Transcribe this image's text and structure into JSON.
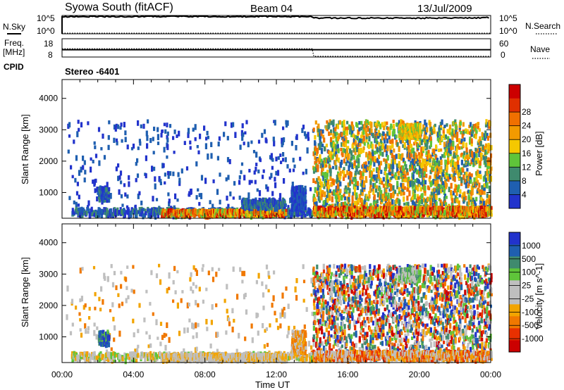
{
  "header": {
    "station": "Syowa South (fitACF)",
    "beam": "Beam 04",
    "date": "13/Jul/2009"
  },
  "noise_panel": {
    "left_label": "N.Sky",
    "right_label": "N.Search",
    "y_ticks": [
      "10^5",
      "10^0"
    ]
  },
  "freq_panel": {
    "left_label_line1": "Freq.",
    "left_label_line2": "[MHz]",
    "left_ticks": [
      "18",
      "8"
    ],
    "right_label": "Nave",
    "right_ticks": [
      "60",
      "0"
    ],
    "cpid_label": "CPID",
    "cpid_value": "Stereo -6401"
  },
  "colors": {
    "power_scale": [
      "#2233cc",
      "#1f5fb0",
      "#3f8a6e",
      "#5fc43a",
      "#f5c800",
      "#f29a00",
      "#f07000",
      "#e03000",
      "#cc0000"
    ],
    "velocity_scale": [
      "#cc0000",
      "#e83000",
      "#f07800",
      "#f2a400",
      "#bfbfbf",
      "#bfbfbf",
      "#5fc43a",
      "#3f8a6e",
      "#1f5fb0",
      "#2233cc"
    ]
  },
  "chart_data": [
    {
      "type": "line",
      "title": "",
      "series": [
        {
          "name": "N.Sky",
          "x_hours": [
            0,
            0.5,
            2,
            4,
            6,
            8,
            10,
            12,
            14,
            14.2,
            16,
            18,
            20,
            22,
            24
          ],
          "value_log10": [
            4.6,
            4.7,
            4.7,
            4.7,
            4.7,
            4.7,
            4.7,
            4.7,
            4.7,
            4.3,
            4.3,
            4.3,
            4.3,
            4.3,
            4.4
          ]
        },
        {
          "name": "N.Search",
          "x_hours": [
            0,
            24
          ],
          "value_log10": [
            0,
            0
          ]
        }
      ],
      "ylim_log10": [
        0,
        5
      ],
      "xlim": [
        "00:00",
        "00:00"
      ]
    },
    {
      "type": "line",
      "series": [
        {
          "name": "Freq.",
          "unit": "MHz",
          "x_hours": [
            0,
            24
          ],
          "values": [
            12,
            12
          ]
        },
        {
          "name": "Nave",
          "x_hours": [
            0,
            14,
            14.1,
            24
          ],
          "values": [
            25,
            25,
            0,
            0
          ]
        }
      ],
      "ylim_left": [
        8,
        18
      ],
      "ylim_right": [
        0,
        60
      ]
    },
    {
      "type": "heatmap",
      "quantity": "Power",
      "colorbar_label": "Power [dB]",
      "colorbar_ticks": [
        4,
        8,
        12,
        16,
        20,
        24,
        28
      ],
      "ylabel": "Slant Range [km]",
      "ylim": [
        180,
        4600
      ],
      "y_ticks": [
        1000,
        2000,
        3000,
        4000
      ],
      "xlabel": "",
      "x_ticks": [
        "00:00",
        "04:00",
        "08:00",
        "12:00",
        "16:00",
        "20:00",
        "00:00"
      ],
      "regions": [
        {
          "t0": 0.2,
          "t1": 14,
          "r0": 200,
          "r1": 3200,
          "density": 0.015,
          "v0": 0,
          "v1": 1
        },
        {
          "t0": 2,
          "t1": 2.6,
          "r0": 700,
          "r1": 1100,
          "density": 0.5,
          "v0": 0,
          "v1": 2
        },
        {
          "t0": 0.5,
          "t1": 14,
          "r0": 200,
          "r1": 420,
          "density": 0.3,
          "v0": 0,
          "v1": 2
        },
        {
          "t0": 5.5,
          "t1": 12.5,
          "r0": 200,
          "r1": 380,
          "density": 0.85,
          "v0": 3,
          "v1": 8
        },
        {
          "t0": 10,
          "t1": 12.5,
          "r0": 450,
          "r1": 700,
          "density": 0.5,
          "v0": 0,
          "v1": 2
        },
        {
          "t0": 12.8,
          "t1": 13.6,
          "r0": 400,
          "r1": 1100,
          "density": 0.55,
          "v0": 0,
          "v1": 1
        },
        {
          "t0": 14,
          "t1": 24,
          "r0": 200,
          "r1": 3200,
          "density": 0.12,
          "v0": 1,
          "v1": 6
        },
        {
          "t0": 18.8,
          "t1": 20,
          "r0": 2700,
          "r1": 3100,
          "density": 0.6,
          "v0": 3,
          "v1": 5
        },
        {
          "t0": 14,
          "t1": 24,
          "r0": 200,
          "r1": 450,
          "density": 0.55,
          "v0": 3,
          "v1": 8
        }
      ]
    },
    {
      "type": "heatmap",
      "quantity": "Velocity",
      "colorbar_label": "Velocity [m s^-1]",
      "colorbar_ticks": [
        1000,
        500,
        100,
        25,
        -25,
        -100,
        -500,
        -1000
      ],
      "ylabel": "Slant Range [km]",
      "ylim": [
        180,
        4600
      ],
      "y_ticks": [
        1000,
        2000,
        3000,
        4000
      ],
      "xlabel": "Time UT",
      "x_ticks": [
        "00:00",
        "04:00",
        "08:00",
        "12:00",
        "16:00",
        "20:00",
        "00:00"
      ],
      "regions": [
        {
          "t0": 0.2,
          "t1": 14,
          "r0": 200,
          "r1": 3200,
          "density": 0.012,
          "v0": 2,
          "v1": 5
        },
        {
          "t0": 2,
          "t1": 2.6,
          "r0": 700,
          "r1": 1100,
          "density": 0.5,
          "v0": 6,
          "v1": 9
        },
        {
          "t0": 0.5,
          "t1": 14,
          "r0": 200,
          "r1": 420,
          "density": 0.3,
          "v0": 3,
          "v1": 6
        },
        {
          "t0": 5.5,
          "t1": 12.5,
          "r0": 200,
          "r1": 380,
          "density": 0.85,
          "v0": 3,
          "v1": 5
        },
        {
          "t0": 12.8,
          "t1": 13.6,
          "r0": 400,
          "r1": 1100,
          "density": 0.45,
          "v0": 2,
          "v1": 4
        },
        {
          "t0": 14,
          "t1": 24,
          "r0": 200,
          "r1": 3200,
          "density": 0.12,
          "v0": 0,
          "v1": 9
        },
        {
          "t0": 18.8,
          "t1": 20,
          "r0": 2700,
          "r1": 3100,
          "density": 0.55,
          "v0": 4,
          "v1": 7
        },
        {
          "t0": 14,
          "t1": 24,
          "r0": 200,
          "r1": 450,
          "density": 0.5,
          "v0": 1,
          "v1": 5
        }
      ]
    }
  ]
}
